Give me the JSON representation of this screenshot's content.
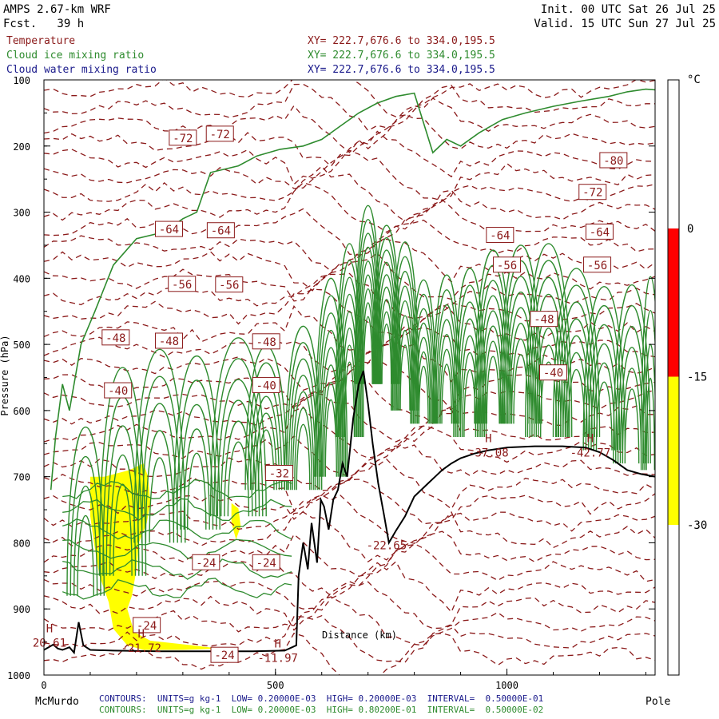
{
  "header": {
    "model": "AMPS 2.67-km WRF",
    "forecast": "Fcst.   39 h",
    "init": "Init. 00 UTC Sat 26 Jul 25",
    "valid": "Valid. 15 UTC Sun 27 Jul 25"
  },
  "fields": [
    {
      "name": "Temperature",
      "xy": "XY= 222.7,676.6 to 334.0,195.5",
      "color": "#8b1a1a"
    },
    {
      "name": "Cloud ice mixing ratio",
      "xy": "XY= 222.7,676.6 to 334.0,195.5",
      "color": "#2e8b2e"
    },
    {
      "name": "Cloud water mixing ratio",
      "xy": "XY= 222.7,676.6 to 334.0,195.5",
      "color": "#1a1a8b"
    }
  ],
  "footer": {
    "left_end": "McMurdo",
    "right_end": "Pole",
    "contours_1": "CONTOURS:  UNITS=g kg-1  LOW= 0.20000E-03  HIGH= 0.20000E-03  INTERVAL=  0.50000E-01",
    "contours_2": "CONTOURS:  UNITS=g kg-1  LOW= 0.20000E-03  HIGH= 0.80200E-01  INTERVAL=  0.50000E-02",
    "contours_1_color": "#1a1a8b",
    "contours_2_color": "#2e8b2e"
  },
  "colorbar": {
    "unit": "°C",
    "ticks": [
      "0",
      "-15",
      "-30"
    ],
    "segments": [
      {
        "from": 0,
        "to": -15,
        "color": "#ff0000"
      },
      {
        "from": -15,
        "to": -30,
        "color": "#ffff00"
      }
    ]
  },
  "chart_data": {
    "type": "contour",
    "xlabel": "Distance (km)",
    "ylabel": "Pressure (hPa)",
    "xlim": [
      0,
      1320
    ],
    "ylim": [
      1000,
      100
    ],
    "x_ticks": [
      "0",
      "500",
      "1000"
    ],
    "y_ticks": [
      "100",
      "200",
      "300",
      "400",
      "500",
      "600",
      "700",
      "800",
      "900",
      "1000"
    ],
    "temperature_labels": [
      {
        "text": "-72",
        "x": 300,
        "y": 188
      },
      {
        "text": "-72",
        "x": 380,
        "y": 182
      },
      {
        "text": "-80",
        "x": 1230,
        "y": 222
      },
      {
        "text": "-72",
        "x": 1185,
        "y": 270
      },
      {
        "text": "-64",
        "x": 270,
        "y": 326
      },
      {
        "text": "-64",
        "x": 382,
        "y": 328
      },
      {
        "text": "-64",
        "x": 985,
        "y": 335
      },
      {
        "text": "-64",
        "x": 1200,
        "y": 330
      },
      {
        "text": "-56",
        "x": 298,
        "y": 409
      },
      {
        "text": "-56",
        "x": 400,
        "y": 410
      },
      {
        "text": "-56",
        "x": 1000,
        "y": 380
      },
      {
        "text": "-56",
        "x": 1195,
        "y": 380
      },
      {
        "text": "-48",
        "x": 155,
        "y": 490
      },
      {
        "text": "-48",
        "x": 270,
        "y": 495
      },
      {
        "text": "-48",
        "x": 480,
        "y": 496
      },
      {
        "text": "-48",
        "x": 1080,
        "y": 462
      },
      {
        "text": "-40",
        "x": 160,
        "y": 570
      },
      {
        "text": "-40",
        "x": 480,
        "y": 562
      },
      {
        "text": "-40",
        "x": 1100,
        "y": 543
      },
      {
        "text": "-32",
        "x": 508,
        "y": 695
      },
      {
        "text": "-24",
        "x": 350,
        "y": 830
      },
      {
        "text": "-24",
        "x": 480,
        "y": 830
      },
      {
        "text": "-24",
        "x": 222,
        "y": 925
      },
      {
        "text": "-24",
        "x": 390,
        "y": 970
      }
    ],
    "extrema": [
      {
        "type": "H",
        "value": "20.61",
        "x": 12,
        "y": 952
      },
      {
        "type": "H",
        "value": "-21.72",
        "x": 210,
        "y": 960
      },
      {
        "type": "H",
        "value": "-11.97",
        "x": 505,
        "y": 975
      },
      {
        "type": "",
        "value": "-22.65",
        "x": 740,
        "y": 805
      },
      {
        "type": "H",
        "value": "-37.08",
        "x": 960,
        "y": 665
      },
      {
        "type": "H",
        "value": "-42.77",
        "x": 1180,
        "y": 665
      }
    ]
  }
}
